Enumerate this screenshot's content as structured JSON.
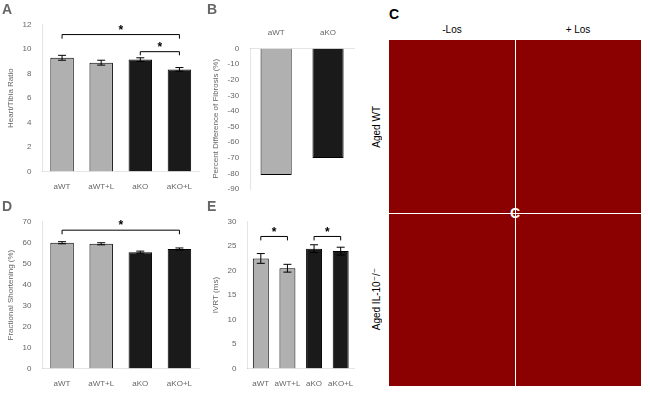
{
  "chart_data": [
    {
      "type": "bar",
      "title": "A",
      "ylabel": "Heart/Tibia Ratio",
      "categories": [
        "aWT",
        "aWT+L",
        "aKO",
        "aKO+L"
      ],
      "values": [
        9.3,
        8.9,
        9.15,
        8.35
      ],
      "errors": [
        0.2,
        0.2,
        0.15,
        0.15
      ],
      "colors": [
        "#b0b0b0",
        "#b0b0b0",
        "#1a1a1a",
        "#1a1a1a"
      ],
      "ylim": [
        0,
        12
      ],
      "yticks": [
        0,
        2,
        4,
        6,
        8,
        10,
        12
      ],
      "grid": false,
      "significance": [
        {
          "from": "aWT",
          "to": "aKO+L",
          "y": 11.2,
          "label": "*"
        },
        {
          "from": "aKO",
          "to": "aKO+L",
          "y": 9.8,
          "label": "*"
        }
      ]
    },
    {
      "type": "bar",
      "title": "B",
      "ylabel": "Percent Difference of Fibrosis (%)",
      "categories": [
        "aWT",
        "aKO"
      ],
      "values": [
        -81,
        -70
      ],
      "colors": [
        "#b0b0b0",
        "#1a1a1a"
      ],
      "ylim": [
        -90,
        0
      ],
      "yticks": [
        -90,
        -80,
        -70,
        -60,
        -50,
        -40,
        -30,
        -20,
        -10,
        0
      ],
      "grid": false
    },
    {
      "type": "image",
      "title": "C",
      "color": "#8b0000",
      "column_labels": [
        "-Los",
        "+ Los"
      ],
      "row_labels": [
        "Aged WT",
        "Aged IL-10⁻/⁻"
      ]
    },
    {
      "type": "bar",
      "title": "D",
      "ylabel": "Fractional Shortening (%)",
      "categories": [
        "aWT",
        "aWT+L",
        "aKO",
        "aKO+L"
      ],
      "values": [
        60.0,
        59.5,
        55.5,
        57.0
      ],
      "errors": [
        0.5,
        0.5,
        0.5,
        0.5
      ],
      "colors": [
        "#b0b0b0",
        "#b0b0b0",
        "#1a1a1a",
        "#1a1a1a"
      ],
      "ylim": [
        0,
        70
      ],
      "yticks": [
        0,
        10,
        20,
        30,
        40,
        50,
        60,
        70
      ],
      "grid": false,
      "significance": [
        {
          "from": "aWT",
          "to": "aKO+L",
          "y": 66,
          "label": "*"
        }
      ]
    },
    {
      "type": "bar",
      "title": "E",
      "ylabel": "IVRT (ms)",
      "categories": [
        "aWT",
        "aWT+L",
        "aKO",
        "aKO+L"
      ],
      "values": [
        22.5,
        20.5,
        24.5,
        24.0
      ],
      "errors": [
        1.0,
        0.8,
        0.8,
        0.8
      ],
      "colors": [
        "#b0b0b0",
        "#b0b0b0",
        "#1a1a1a",
        "#1a1a1a"
      ],
      "ylim": [
        0,
        30
      ],
      "yticks": [
        0,
        5,
        10,
        15,
        20,
        25,
        30
      ],
      "grid": false,
      "significance": [
        {
          "from": "aWT",
          "to": "aWT+L",
          "y": 27,
          "label": "*"
        },
        {
          "from": "aKO",
          "to": "aKO+L",
          "y": 27,
          "label": "*"
        }
      ]
    }
  ]
}
